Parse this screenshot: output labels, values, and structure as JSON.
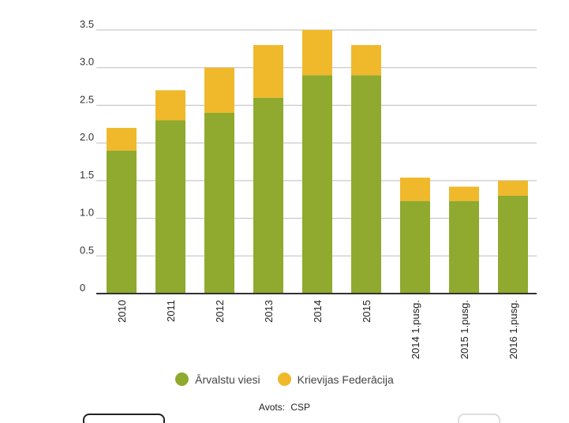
{
  "chart_data": {
    "type": "bar",
    "stacked": true,
    "categories": [
      "2010",
      "2011",
      "2012",
      "2013",
      "2014",
      "2015",
      "2014 1.pusg.",
      "2015 1.pusg.",
      "2016 1.pusg."
    ],
    "series": [
      {
        "name": "Ārvalstu viesi",
        "color": "#8faa2e",
        "values": [
          1.9,
          2.3,
          2.4,
          2.6,
          2.9,
          2.9,
          1.23,
          1.23,
          1.3
        ]
      },
      {
        "name": "Krievijas Federācija",
        "color": "#f0b92c",
        "values": [
          0.3,
          0.4,
          0.6,
          0.7,
          0.6,
          0.4,
          0.31,
          0.19,
          0.2
        ]
      }
    ],
    "yticks": [
      "0",
      "0.5",
      "1.0",
      "1.5",
      "2.0",
      "2.5",
      "3.0",
      "3.5"
    ],
    "ylim": [
      0,
      3.5
    ],
    "grid": true,
    "legend_position": "bottom"
  },
  "source": {
    "label": "Avots:",
    "value": "CSP"
  }
}
